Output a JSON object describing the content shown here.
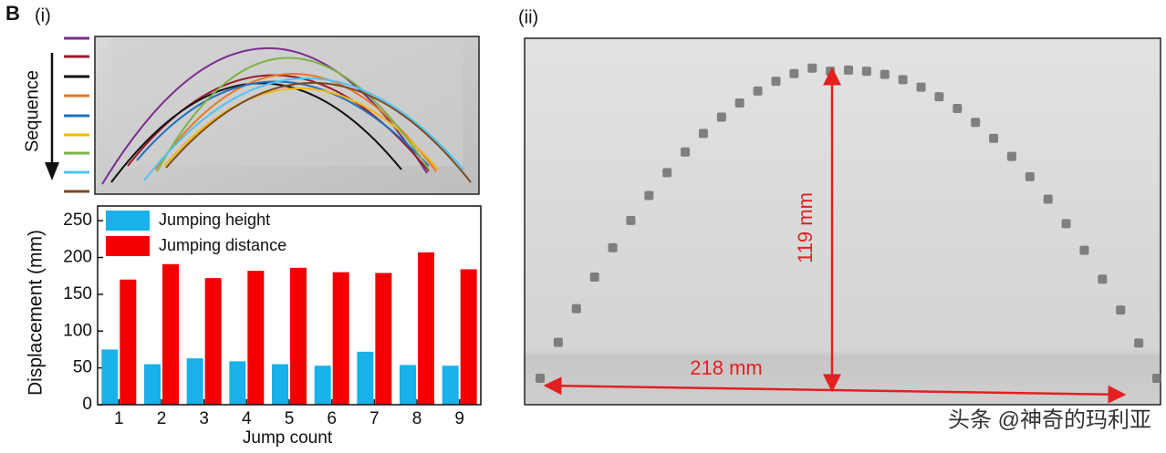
{
  "panel_label": "B",
  "sub_labels": [
    "(i)",
    "(ii)"
  ],
  "sequence_label": "Sequence",
  "height_annotation": "119 mm",
  "distance_annotation": "218 mm",
  "watermark": "头条 @神奇的玛利亚",
  "chart_data": {
    "type": "bar",
    "x_label": "Jump count",
    "y_label": "Displacement (mm)",
    "categories": [
      "1",
      "2",
      "3",
      "4",
      "5",
      "6",
      "7",
      "8",
      "9"
    ],
    "series": [
      {
        "name": "Jumping height",
        "color": "#1ab0ea",
        "values": [
          75,
          55,
          63,
          59,
          55,
          53,
          72,
          54,
          53
        ]
      },
      {
        "name": "Jumping distance",
        "color": "#f20000",
        "values": [
          170,
          191,
          172,
          182,
          186,
          180,
          179,
          207,
          184
        ]
      }
    ],
    "ylim": [
      0,
      270
    ],
    "yticks": [
      0,
      50,
      100,
      150,
      200,
      250
    ],
    "legend": "upper left"
  }
}
